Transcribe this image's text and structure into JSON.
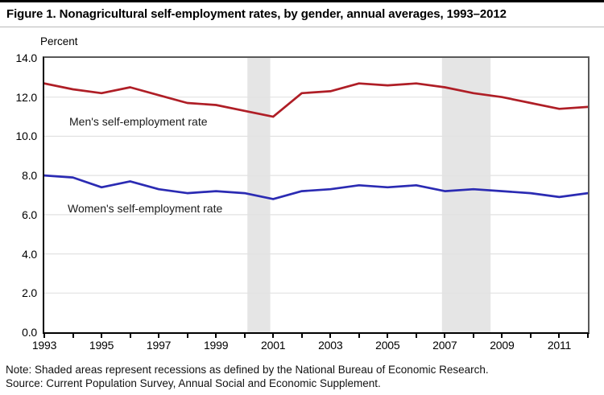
{
  "figure": {
    "title": "Figure 1. Nonagricultural self-employment rates, by gender, annual averages, 1993–2012",
    "axis_caption": "Percent",
    "note": "Note: Shaded areas represent recessions as defined by the National Bureau of Economic Research.",
    "source": "Source: Current Population Survey, Annual Social and Economic Supplement."
  },
  "chart_data": {
    "type": "line",
    "title": "Figure 1. Nonagricultural self-employment rates, by gender, annual averages, 1993–2012",
    "xlabel": "",
    "ylabel": "Percent",
    "x": [
      1993,
      1994,
      1995,
      1996,
      1997,
      1998,
      1999,
      2000,
      2001,
      2002,
      2003,
      2004,
      2005,
      2006,
      2007,
      2008,
      2009,
      2010,
      2011,
      2012
    ],
    "series": [
      {
        "name": "Men's self-employment rate",
        "color": "#af1e26",
        "values": [
          12.7,
          12.4,
          12.2,
          12.5,
          12.1,
          11.7,
          11.6,
          11.3,
          11.0,
          12.2,
          12.3,
          12.7,
          12.6,
          12.7,
          12.5,
          12.2,
          12.0,
          11.7,
          11.4,
          11.5
        ]
      },
      {
        "name": "Women's self-employment rate",
        "color": "#2b2bb3",
        "values": [
          8.0,
          7.9,
          7.4,
          7.7,
          7.3,
          7.1,
          7.2,
          7.1,
          6.8,
          7.2,
          7.3,
          7.5,
          7.4,
          7.5,
          7.2,
          7.3,
          7.2,
          7.1,
          6.9,
          7.1
        ]
      }
    ],
    "xlim": [
      1993,
      2012
    ],
    "ylim": [
      0,
      14
    ],
    "ytick_step": 2,
    "ytick_decimals": 1,
    "xticks_all": [
      1993,
      1994,
      1995,
      1996,
      1997,
      1998,
      1999,
      2000,
      2001,
      2002,
      2003,
      2004,
      2005,
      2006,
      2007,
      2008,
      2009,
      2010,
      2011,
      2012
    ],
    "xticks_labeled": [
      1993,
      1995,
      1997,
      1999,
      2001,
      2003,
      2005,
      2007,
      2009,
      2011
    ],
    "grid": true,
    "legend_position": "inline-annotations",
    "recession_bands": [
      [
        2000.1,
        2000.9
      ],
      [
        2006.9,
        2008.6
      ]
    ],
    "colors": {
      "recession_shading": "#e5e5e5",
      "gridline": "#e2e2e2",
      "plot_frame": "#595959",
      "axis": "#000000"
    }
  }
}
